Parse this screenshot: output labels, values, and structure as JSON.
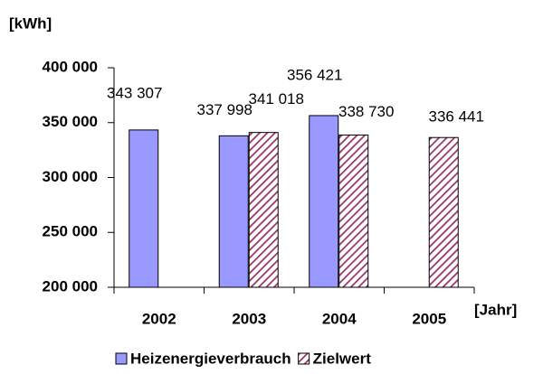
{
  "chart_data": {
    "type": "bar",
    "y_label": "[kWh]",
    "x_label": "[Jahr]",
    "categories": [
      "2002",
      "2003",
      "2004",
      "2005"
    ],
    "series": [
      {
        "name": "Heizenergieverbrauch",
        "color": "#9999ff",
        "values": [
          343307,
          337998,
          356421,
          null
        ],
        "value_labels": [
          "343 307",
          "337 998",
          "356 421",
          null
        ]
      },
      {
        "name": "Zielwert",
        "color": "#993366",
        "pattern": "hatch",
        "values": [
          null,
          341018,
          338730,
          336441
        ],
        "value_labels": [
          null,
          "341 018",
          "338 730",
          "336 441"
        ]
      }
    ],
    "ylim": [
      200000,
      400000
    ],
    "yticks": [
      {
        "value": 200000,
        "label": "200 000"
      },
      {
        "value": 250000,
        "label": "250 000"
      },
      {
        "value": 300000,
        "label": "300 000"
      },
      {
        "value": 350000,
        "label": "350 000"
      },
      {
        "value": 400000,
        "label": "400 000"
      }
    ],
    "legend": "bottom"
  }
}
